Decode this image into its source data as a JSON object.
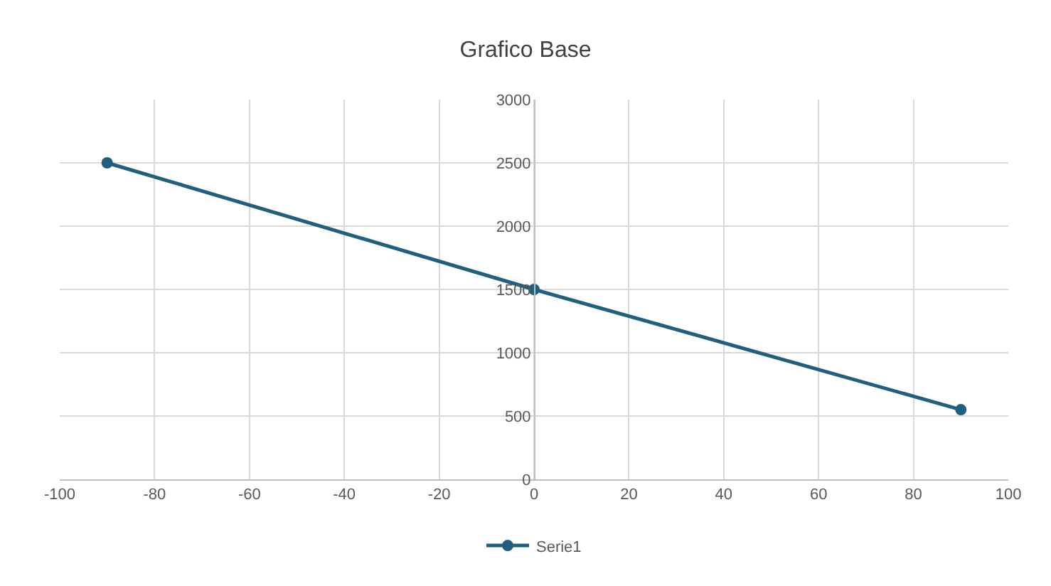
{
  "chart_data": {
    "type": "line",
    "title": "Grafico Base",
    "x": [
      -90,
      0,
      90
    ],
    "series": [
      {
        "name": "Serie1",
        "color": "#1f5f7f",
        "values": [
          2500,
          1500,
          550
        ]
      }
    ],
    "xlim": [
      -100,
      100
    ],
    "xticks": [
      -100,
      -80,
      -60,
      -40,
      -20,
      0,
      20,
      40,
      60,
      80,
      100
    ],
    "ylim": [
      0,
      3000
    ],
    "yticks": [
      0,
      500,
      1000,
      1500,
      2000,
      2500,
      3000
    ],
    "grid": true,
    "legend": "bottom",
    "marker": "circle",
    "line_style": "solid"
  }
}
